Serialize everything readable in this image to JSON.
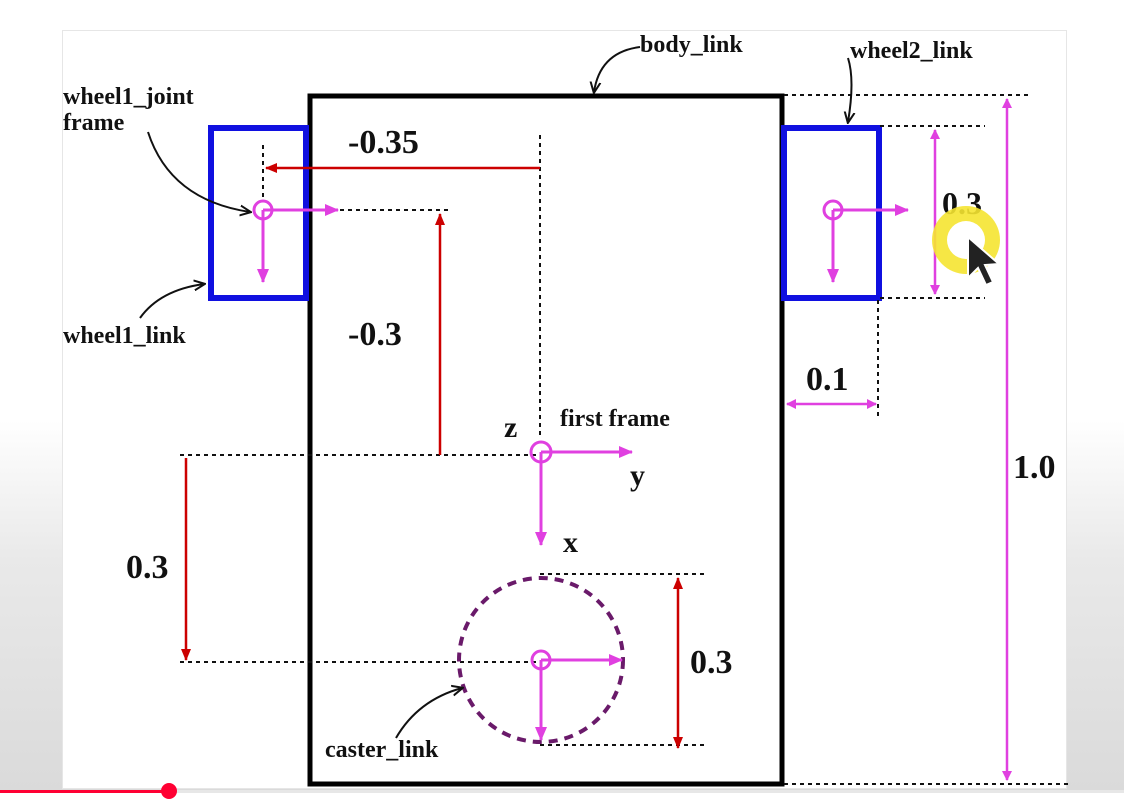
{
  "diagram": {
    "labels": {
      "body_link": "body_link",
      "wheel2_link": "wheel2_link",
      "wheel1_joint": "wheel1_joint",
      "frame": "frame",
      "wheel1_link": "wheel1_link",
      "caster_link": "caster_link",
      "first_frame": "first frame"
    },
    "axes": {
      "z": "z",
      "y": "y",
      "x": "x"
    },
    "dimensions": {
      "wheel1_y_offset": "-0.35",
      "wheel1_x_offset": "-0.3",
      "caster_x_offset": "0.3",
      "caster_diameter": "0.3",
      "wheel_diameter": "0.3",
      "wheel_gap": "0.1",
      "body_length": "1.0"
    },
    "colors": {
      "body": "#000000",
      "wheel_box": "#1010e0",
      "frame_axes": "#e040e0",
      "offset_arrow": "#cc0000",
      "caster_outline": "#6a1a6a",
      "cursor_highlight": "#f5e431"
    }
  },
  "player": {
    "progress": 0.15
  }
}
